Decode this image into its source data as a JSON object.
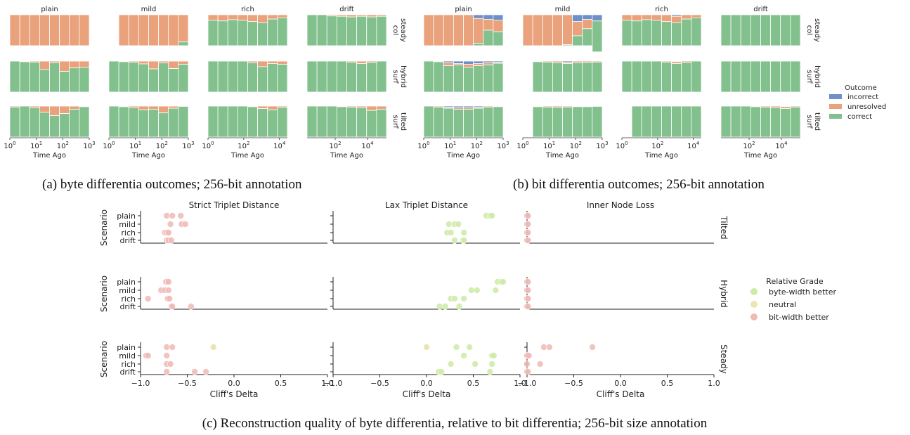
{
  "captions": {
    "a": "(a) byte differentia outcomes; 256-bit annotation",
    "b": "(b) bit differentia outcomes; 256-bit annotation",
    "c": "(c) Reconstruction quality of byte differentia, relative to bit differentia; 256-bit size annotation"
  },
  "colors": {
    "correct": "#82c08d",
    "unresolved": "#e9a27c",
    "incorrect": "#6e8fc7",
    "byte": "#cdeaa6",
    "neutral": "#ece5b3",
    "bit": "#f0b9b4"
  },
  "chart_data": [
    {
      "type": "bar",
      "id": "a",
      "stacking": "proportion",
      "xlabel": "Time Ago",
      "columns": [
        "plain",
        "mild",
        "rich",
        "drift"
      ],
      "rows": [
        {
          "l1": "col",
          "l2": "steady"
        },
        {
          "l1": "surf",
          "l2": "hybrid"
        },
        {
          "l1": "surf",
          "l2": "tilted"
        }
      ],
      "x_ticks": [
        [
          {
            "b": "10",
            "e": "0"
          },
          {
            "b": "10",
            "e": "1"
          },
          {
            "b": "10",
            "e": "2"
          },
          {
            "b": "10",
            "e": "3"
          }
        ],
        [
          {
            "b": "10",
            "e": "0"
          },
          {
            "b": "10",
            "e": "1"
          },
          {
            "b": "10",
            "e": "2"
          },
          {
            "b": "10",
            "e": "3"
          }
        ],
        [
          {
            "b": "10",
            "e": "0"
          },
          {
            "b": "10",
            "e": "2"
          },
          {
            "b": "10",
            "e": "4"
          }
        ],
        [
          {
            "b": "10",
            "e": "2"
          },
          {
            "b": "10",
            "e": "4"
          }
        ]
      ],
      "legend": {
        "title": "Outcome",
        "entries": [
          "incorrect",
          "unresolved",
          "correct"
        ]
      },
      "panels": [
        [
          {
            "correct": [
              0,
              0,
              0,
              0,
              0,
              0,
              0,
              0
            ],
            "incorrect": [
              0,
              0,
              0,
              0,
              0,
              0,
              0,
              0
            ]
          },
          {
            "correct": [
              0,
              0,
              0,
              0,
              0,
              0,
              0,
              0.12
            ],
            "incorrect": [
              0,
              0,
              0,
              0,
              0,
              0,
              0,
              0
            ],
            "skip_first": 1
          },
          {
            "correct": [
              0.82,
              0.8,
              0.84,
              0.82,
              0.78,
              0.74,
              0.86,
              0.9
            ],
            "incorrect": [
              0,
              0,
              0,
              0,
              0,
              0,
              0,
              0
            ]
          },
          {
            "correct": [
              1,
              1,
              0.96,
              0.95,
              0.93,
              0.95,
              0.93,
              0.95
            ],
            "incorrect": [
              0,
              0,
              0,
              0,
              0,
              0,
              0,
              0
            ]
          }
        ],
        [
          {
            "correct": [
              1,
              0.98,
              0.97,
              0.73,
              0.95,
              0.67,
              0.78,
              0.8
            ],
            "incorrect": [
              0,
              0,
              0,
              0,
              0,
              0,
              0,
              0
            ]
          },
          {
            "correct": [
              1,
              0.98,
              0.97,
              0.91,
              0.75,
              0.94,
              0.76,
              0.9
            ],
            "incorrect": [
              0,
              0,
              0,
              0,
              0,
              0,
              0,
              0
            ]
          },
          {
            "correct": [
              1,
              1,
              1,
              1,
              0.95,
              0.82,
              0.92,
              0.9
            ],
            "incorrect": [
              0,
              0,
              0,
              0,
              0,
              0,
              0,
              0
            ]
          },
          {
            "correct": [
              1,
              1,
              1,
              1,
              0.97,
              0.92,
              0.96,
              1
            ],
            "incorrect": [
              0,
              0,
              0,
              0,
              0,
              0,
              0,
              0
            ]
          }
        ],
        [
          {
            "correct": [
              0.97,
              1,
              0.95,
              0.8,
              0.69,
              0.76,
              0.9,
              0.98
            ],
            "incorrect": [
              0,
              0,
              0,
              0,
              0,
              0,
              0,
              0
            ]
          },
          {
            "correct": [
              1,
              0.98,
              0.95,
              0.88,
              0.9,
              0.78,
              0.93,
              0.99
            ],
            "incorrect": [
              0,
              0,
              0,
              0,
              0,
              0,
              0,
              0
            ]
          },
          {
            "correct": [
              1,
              1,
              1,
              1,
              0.98,
              0.92,
              0.88,
              0.96
            ],
            "incorrect": [
              0,
              0,
              0,
              0,
              0,
              0,
              0,
              0
            ]
          },
          {
            "correct": [
              1,
              1,
              1,
              0.98,
              0.97,
              0.95,
              0.86,
              0.9
            ],
            "incorrect": [
              0,
              0,
              0,
              0,
              0,
              0,
              0,
              0
            ]
          }
        ]
      ]
    },
    {
      "type": "bar",
      "id": "b",
      "stacking": "proportion",
      "xlabel": "Time Ago",
      "columns": [
        "plain",
        "mild",
        "rich",
        "drift"
      ],
      "rows": [
        {
          "l1": "col",
          "l2": "steady"
        },
        {
          "l1": "surf",
          "l2": "hybrid"
        },
        {
          "l1": "surf",
          "l2": "tilted"
        }
      ],
      "x_ticks": [
        [
          {
            "b": "10",
            "e": "0"
          },
          {
            "b": "10",
            "e": "1"
          },
          {
            "b": "10",
            "e": "2"
          },
          {
            "b": "10",
            "e": "3"
          }
        ],
        [
          {
            "b": "10",
            "e": "0"
          },
          {
            "b": "10",
            "e": "1"
          },
          {
            "b": "10",
            "e": "2"
          },
          {
            "b": "10",
            "e": "3"
          }
        ],
        [
          {
            "b": "10",
            "e": "0"
          },
          {
            "b": "10",
            "e": "2"
          },
          {
            "b": "10",
            "e": "4"
          }
        ],
        [
          {
            "b": "10",
            "e": "2"
          },
          {
            "b": "10",
            "e": "4"
          }
        ]
      ],
      "legend": {
        "title": "Outcome",
        "entries": [
          "incorrect",
          "unresolved",
          "correct"
        ]
      },
      "panels": [
        [
          {
            "correct": [
              0,
              0,
              0,
              0,
              0,
              0.08,
              0.5,
              0.45
            ],
            "incorrect": [
              0,
              0,
              0,
              0,
              0,
              0.12,
              0.15,
              0.18
            ]
          },
          {
            "correct": [
              0,
              0,
              0,
              0,
              0.03,
              0.32,
              0.55,
              1
            ],
            "incorrect": [
              0,
              0,
              0,
              0,
              0,
              0.22,
              0.15,
              0.2
            ]
          },
          {
            "correct": [
              0.82,
              0.8,
              0.84,
              0.82,
              0.78,
              0.74,
              0.86,
              0.9
            ],
            "incorrect": [
              0,
              0,
              0,
              0,
              0,
              0.05,
              0,
              0
            ]
          },
          {
            "correct": [
              1,
              1,
              1,
              1,
              1,
              1,
              1,
              1
            ],
            "incorrect": [
              0,
              0,
              0,
              0,
              0,
              0,
              0,
              0
            ]
          }
        ],
        [
          {
            "correct": [
              1,
              0.98,
              0.85,
              0.88,
              0.8,
              0.85,
              0.88,
              0.93
            ],
            "incorrect": [
              0,
              0,
              0.05,
              0.08,
              0.1,
              0.08,
              0.05,
              0.04
            ]
          },
          {
            "correct": [
              0.97,
              0.98,
              0.97,
              0.95,
              0.92,
              0.95,
              0.96,
              0.97
            ],
            "incorrect": [
              0,
              0,
              0,
              0,
              0.04,
              0,
              0,
              0
            ],
            "skip_first": 1
          },
          {
            "correct": [
              1,
              1,
              1,
              1,
              0.97,
              0.92,
              0.96,
              1
            ],
            "incorrect": [
              0,
              0,
              0,
              0,
              0,
              0.02,
              0,
              0
            ]
          },
          {
            "correct": [
              1,
              1,
              1,
              1,
              1,
              1,
              1,
              1
            ],
            "incorrect": [
              0,
              0,
              0,
              0,
              0,
              0,
              0,
              0
            ]
          }
        ],
        [
          {
            "correct": [
              1,
              0.97,
              0.93,
              0.9,
              0.9,
              0.93,
              0.97,
              0.98
            ],
            "incorrect": [
              0,
              0,
              0.04,
              0.05,
              0.05,
              0.04,
              0,
              0
            ]
          },
          {
            "correct": [
              0.98,
              0.98,
              0.97,
              0.96,
              0.97,
              0.98,
              0.98,
              0.99
            ],
            "incorrect": [
              0,
              0,
              0,
              0,
              0,
              0,
              0,
              0
            ],
            "skip_first": 1
          },
          {
            "correct": [
              1,
              1,
              1,
              1,
              1,
              1,
              1,
              1
            ],
            "incorrect": [
              0,
              0,
              0,
              0,
              0,
              0,
              0,
              0
            ],
            "skip_first": 1
          },
          {
            "correct": [
              1,
              1,
              1,
              0.98,
              0.97,
              0.95,
              0.92,
              0.97
            ],
            "incorrect": [
              0,
              0,
              0,
              0,
              0,
              0,
              0.02,
              0
            ]
          }
        ]
      ]
    },
    {
      "type": "scatter",
      "id": "c",
      "xlabel": "Cliff's Delta",
      "ylabel": "Scenario",
      "xlim": [
        -1,
        1
      ],
      "x_ticks": [
        "−1.0",
        "−0.5",
        "0.0",
        "0.5",
        "1.0"
      ],
      "columns": [
        "Strict Triplet Distance",
        "Lax Triplet Distance",
        "Inner Node Loss"
      ],
      "rows": [
        "Tilted",
        "Hybrid",
        "Steady"
      ],
      "scenarios": [
        "plain",
        "mild",
        "rich",
        "drift"
      ],
      "legend": {
        "title": "Relative Grade",
        "entries": [
          {
            "label": "byte-width better",
            "key": "byte"
          },
          {
            "label": "neutral",
            "key": "neutral"
          },
          {
            "label": "bit-width better",
            "key": "bit"
          }
        ]
      },
      "points": [
        [
          [
            {
              "plain": [
                -0.72,
                -0.66,
                -0.57
              ],
              "mild": [
                -0.68,
                -0.56,
                -0.52
              ],
              "rich": [
                -0.74,
                -0.72,
                -0.7
              ],
              "drift": [
                -0.72,
                -0.7,
                -0.67
              ]
            },
            {
              "plain": [
                0.64,
                0.68,
                0.7
              ],
              "mild": [
                0.24,
                0.3,
                0.34
              ],
              "rich": [
                0.22,
                0.26,
                0.4
              ],
              "drift": [
                0.3,
                0.39,
                0.4
              ]
            },
            {
              "plain": [
                -1,
                -0.99
              ],
              "mild": [
                -1,
                -0.99
              ],
              "rich": [
                -1,
                -0.99
              ],
              "drift": [
                -1,
                -0.99
              ]
            }
          ],
          [
            {
              "plain": [
                -0.73,
                -0.72,
                -0.7
              ],
              "mild": [
                -0.78,
                -0.74,
                -0.7
              ],
              "rich": [
                -0.92,
                -0.71,
                -0.69
              ],
              "drift": [
                -0.67,
                -0.66,
                -0.46
              ]
            },
            {
              "plain": [
                0.76,
                0.8,
                0.82
              ],
              "mild": [
                0.48,
                0.54,
                0.74
              ],
              "rich": [
                0.26,
                0.3,
                0.4
              ],
              "drift": [
                0.14,
                0.2,
                0.35
              ]
            },
            {
              "plain": [
                -1,
                -0.99
              ],
              "mild": [
                -1,
                -0.99
              ],
              "rich": [
                -1,
                -0.99
              ],
              "drift": [
                -1,
                -0.99
              ]
            }
          ],
          [
            {
              "plain": [
                -0.72,
                -0.66
              ],
              "mild": [
                -0.94,
                -0.92,
                -0.72
              ],
              "rich": [
                -0.72,
                -0.68
              ],
              "drift": [
                -0.72,
                -0.42,
                -0.3
              ]
            },
            {
              "plain": [
                0.32,
                0.46
              ],
              "mild": [
                0.4,
                0.7,
                0.72
              ],
              "rich": [
                0.26,
                0.52,
                0.7
              ],
              "drift": [
                0.13,
                0.16,
                0.68
              ]
            },
            {
              "plain": [
                -0.82,
                -0.76,
                -0.3
              ],
              "mild": [
                -1,
                -0.98
              ],
              "rich": [
                -1,
                -0.86
              ],
              "drift": [
                -1,
                -0.99
              ]
            }
          ]
        ]
      ],
      "neutral_points": [
        {
          "panel_row": 2,
          "panel_col": 0,
          "scenario": "plain",
          "x": -0.22
        },
        {
          "panel_row": 2,
          "panel_col": 1,
          "scenario": "plain",
          "x": 0.0
        }
      ]
    }
  ]
}
